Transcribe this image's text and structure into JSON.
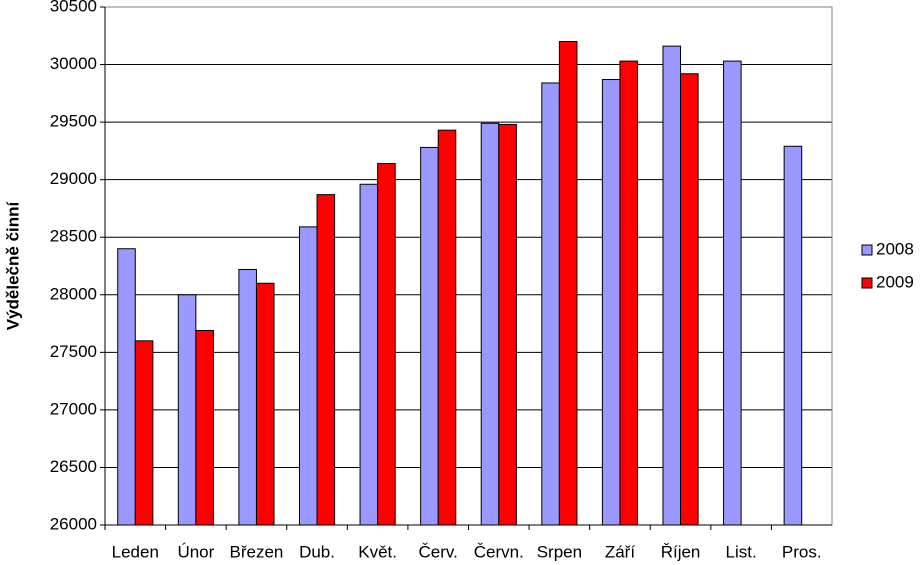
{
  "chart_data": {
    "type": "bar",
    "ylabel": "Výdělečně činní",
    "categories": [
      "Leden",
      "Únor",
      "Březen",
      "Dub.",
      "Květ.",
      "Červ.",
      "Červn.",
      "Srpen",
      "Září",
      "Říjen",
      "List.",
      "Pros."
    ],
    "series": [
      {
        "name": "2008",
        "color": "#9999ff",
        "values": [
          28400,
          28000,
          28220,
          28590,
          28960,
          29280,
          29490,
          29840,
          29870,
          30160,
          30030,
          29290
        ]
      },
      {
        "name": "2009",
        "color": "#ff0000",
        "values": [
          27600,
          27690,
          28100,
          28870,
          29140,
          29430,
          29480,
          30200,
          30030,
          29920,
          null,
          null
        ]
      }
    ],
    "ylim": [
      26000,
      30500
    ],
    "yticks": [
      26000,
      26500,
      27000,
      27500,
      28000,
      28500,
      29000,
      29500,
      30000,
      30500
    ],
    "grid": true,
    "legend": "right"
  }
}
